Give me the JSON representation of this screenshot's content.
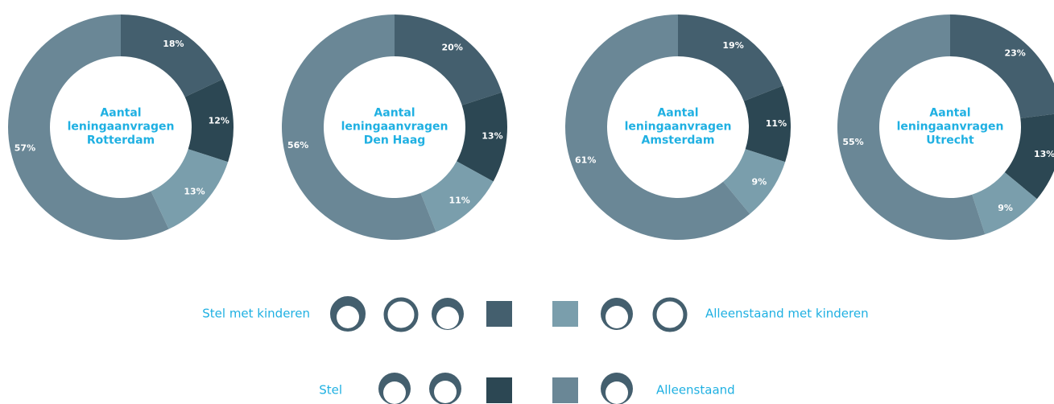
{
  "chart_data": [
    {
      "type": "pie",
      "title": "Aantal leningaanvragen Rotterdam",
      "values": [
        18,
        12,
        13,
        57
      ],
      "value_labels": [
        "18%",
        "12%",
        "13%",
        "57%"
      ],
      "colors": [
        "#445f6e",
        "#2c4753",
        "#7a9eac",
        "#6a8796"
      ]
    },
    {
      "type": "pie",
      "title": "Aantal leningaanvragen Den Haag",
      "values": [
        20,
        13,
        11,
        56
      ],
      "value_labels": [
        "20%",
        "13%",
        "11%",
        "56%"
      ],
      "colors": [
        "#445f6e",
        "#2c4753",
        "#7a9eac",
        "#6a8796"
      ]
    },
    {
      "type": "pie",
      "title": "Aantal leningaanvragen Amsterdam",
      "values": [
        19,
        11,
        9,
        61
      ],
      "value_labels": [
        "19%",
        "11%",
        "9%",
        "61%"
      ],
      "colors": [
        "#445f6e",
        "#2c4753",
        "#7a9eac",
        "#6a8796"
      ]
    },
    {
      "type": "pie",
      "title": "Aantal leningaanvragen Utrecht",
      "values": [
        23,
        13,
        9,
        55
      ],
      "value_labels": [
        "23%",
        "13%",
        "9%",
        "55%"
      ],
      "colors": [
        "#445f6e",
        "#2c4753",
        "#7a9eac",
        "#6a8796"
      ]
    }
  ],
  "legend": [
    {
      "label": "Stel met kinderen",
      "color": "#445f6e"
    },
    {
      "label": "Stel",
      "color": "#2c4753"
    },
    {
      "label": "Alleenstaand met kinderen",
      "color": "#7a9eac"
    },
    {
      "label": "Alleenstaand",
      "color": "#6a8796"
    }
  ]
}
